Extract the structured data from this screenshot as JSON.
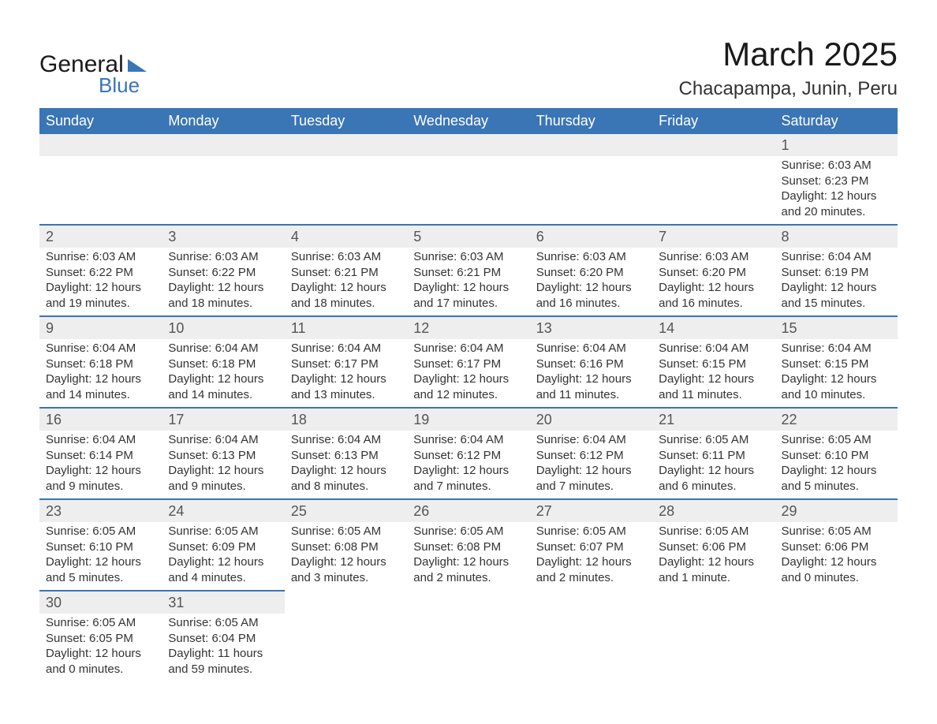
{
  "logo": {
    "word1": "General",
    "word2": "Blue"
  },
  "title": "March 2025",
  "location": "Chacapampa, Junin, Peru",
  "colors": {
    "header_bg": "#3a75b5",
    "header_text": "#ffffff",
    "daynum_bg": "#eeeeee",
    "border": "#3a75b5",
    "text": "#333333",
    "page_bg": "#ffffff"
  },
  "weekdays": [
    "Sunday",
    "Monday",
    "Tuesday",
    "Wednesday",
    "Thursday",
    "Friday",
    "Saturday"
  ],
  "weeks": [
    [
      null,
      null,
      null,
      null,
      null,
      null,
      {
        "n": "1",
        "sunrise": "Sunrise: 6:03 AM",
        "sunset": "Sunset: 6:23 PM",
        "daylight": "Daylight: 12 hours and 20 minutes."
      }
    ],
    [
      {
        "n": "2",
        "sunrise": "Sunrise: 6:03 AM",
        "sunset": "Sunset: 6:22 PM",
        "daylight": "Daylight: 12 hours and 19 minutes."
      },
      {
        "n": "3",
        "sunrise": "Sunrise: 6:03 AM",
        "sunset": "Sunset: 6:22 PM",
        "daylight": "Daylight: 12 hours and 18 minutes."
      },
      {
        "n": "4",
        "sunrise": "Sunrise: 6:03 AM",
        "sunset": "Sunset: 6:21 PM",
        "daylight": "Daylight: 12 hours and 18 minutes."
      },
      {
        "n": "5",
        "sunrise": "Sunrise: 6:03 AM",
        "sunset": "Sunset: 6:21 PM",
        "daylight": "Daylight: 12 hours and 17 minutes."
      },
      {
        "n": "6",
        "sunrise": "Sunrise: 6:03 AM",
        "sunset": "Sunset: 6:20 PM",
        "daylight": "Daylight: 12 hours and 16 minutes."
      },
      {
        "n": "7",
        "sunrise": "Sunrise: 6:03 AM",
        "sunset": "Sunset: 6:20 PM",
        "daylight": "Daylight: 12 hours and 16 minutes."
      },
      {
        "n": "8",
        "sunrise": "Sunrise: 6:04 AM",
        "sunset": "Sunset: 6:19 PM",
        "daylight": "Daylight: 12 hours and 15 minutes."
      }
    ],
    [
      {
        "n": "9",
        "sunrise": "Sunrise: 6:04 AM",
        "sunset": "Sunset: 6:18 PM",
        "daylight": "Daylight: 12 hours and 14 minutes."
      },
      {
        "n": "10",
        "sunrise": "Sunrise: 6:04 AM",
        "sunset": "Sunset: 6:18 PM",
        "daylight": "Daylight: 12 hours and 14 minutes."
      },
      {
        "n": "11",
        "sunrise": "Sunrise: 6:04 AM",
        "sunset": "Sunset: 6:17 PM",
        "daylight": "Daylight: 12 hours and 13 minutes."
      },
      {
        "n": "12",
        "sunrise": "Sunrise: 6:04 AM",
        "sunset": "Sunset: 6:17 PM",
        "daylight": "Daylight: 12 hours and 12 minutes."
      },
      {
        "n": "13",
        "sunrise": "Sunrise: 6:04 AM",
        "sunset": "Sunset: 6:16 PM",
        "daylight": "Daylight: 12 hours and 11 minutes."
      },
      {
        "n": "14",
        "sunrise": "Sunrise: 6:04 AM",
        "sunset": "Sunset: 6:15 PM",
        "daylight": "Daylight: 12 hours and 11 minutes."
      },
      {
        "n": "15",
        "sunrise": "Sunrise: 6:04 AM",
        "sunset": "Sunset: 6:15 PM",
        "daylight": "Daylight: 12 hours and 10 minutes."
      }
    ],
    [
      {
        "n": "16",
        "sunrise": "Sunrise: 6:04 AM",
        "sunset": "Sunset: 6:14 PM",
        "daylight": "Daylight: 12 hours and 9 minutes."
      },
      {
        "n": "17",
        "sunrise": "Sunrise: 6:04 AM",
        "sunset": "Sunset: 6:13 PM",
        "daylight": "Daylight: 12 hours and 9 minutes."
      },
      {
        "n": "18",
        "sunrise": "Sunrise: 6:04 AM",
        "sunset": "Sunset: 6:13 PM",
        "daylight": "Daylight: 12 hours and 8 minutes."
      },
      {
        "n": "19",
        "sunrise": "Sunrise: 6:04 AM",
        "sunset": "Sunset: 6:12 PM",
        "daylight": "Daylight: 12 hours and 7 minutes."
      },
      {
        "n": "20",
        "sunrise": "Sunrise: 6:04 AM",
        "sunset": "Sunset: 6:12 PM",
        "daylight": "Daylight: 12 hours and 7 minutes."
      },
      {
        "n": "21",
        "sunrise": "Sunrise: 6:05 AM",
        "sunset": "Sunset: 6:11 PM",
        "daylight": "Daylight: 12 hours and 6 minutes."
      },
      {
        "n": "22",
        "sunrise": "Sunrise: 6:05 AM",
        "sunset": "Sunset: 6:10 PM",
        "daylight": "Daylight: 12 hours and 5 minutes."
      }
    ],
    [
      {
        "n": "23",
        "sunrise": "Sunrise: 6:05 AM",
        "sunset": "Sunset: 6:10 PM",
        "daylight": "Daylight: 12 hours and 5 minutes."
      },
      {
        "n": "24",
        "sunrise": "Sunrise: 6:05 AM",
        "sunset": "Sunset: 6:09 PM",
        "daylight": "Daylight: 12 hours and 4 minutes."
      },
      {
        "n": "25",
        "sunrise": "Sunrise: 6:05 AM",
        "sunset": "Sunset: 6:08 PM",
        "daylight": "Daylight: 12 hours and 3 minutes."
      },
      {
        "n": "26",
        "sunrise": "Sunrise: 6:05 AM",
        "sunset": "Sunset: 6:08 PM",
        "daylight": "Daylight: 12 hours and 2 minutes."
      },
      {
        "n": "27",
        "sunrise": "Sunrise: 6:05 AM",
        "sunset": "Sunset: 6:07 PM",
        "daylight": "Daylight: 12 hours and 2 minutes."
      },
      {
        "n": "28",
        "sunrise": "Sunrise: 6:05 AM",
        "sunset": "Sunset: 6:06 PM",
        "daylight": "Daylight: 12 hours and 1 minute."
      },
      {
        "n": "29",
        "sunrise": "Sunrise: 6:05 AM",
        "sunset": "Sunset: 6:06 PM",
        "daylight": "Daylight: 12 hours and 0 minutes."
      }
    ],
    [
      {
        "n": "30",
        "sunrise": "Sunrise: 6:05 AM",
        "sunset": "Sunset: 6:05 PM",
        "daylight": "Daylight: 12 hours and 0 minutes."
      },
      {
        "n": "31",
        "sunrise": "Sunrise: 6:05 AM",
        "sunset": "Sunset: 6:04 PM",
        "daylight": "Daylight: 11 hours and 59 minutes."
      },
      null,
      null,
      null,
      null,
      null
    ]
  ]
}
